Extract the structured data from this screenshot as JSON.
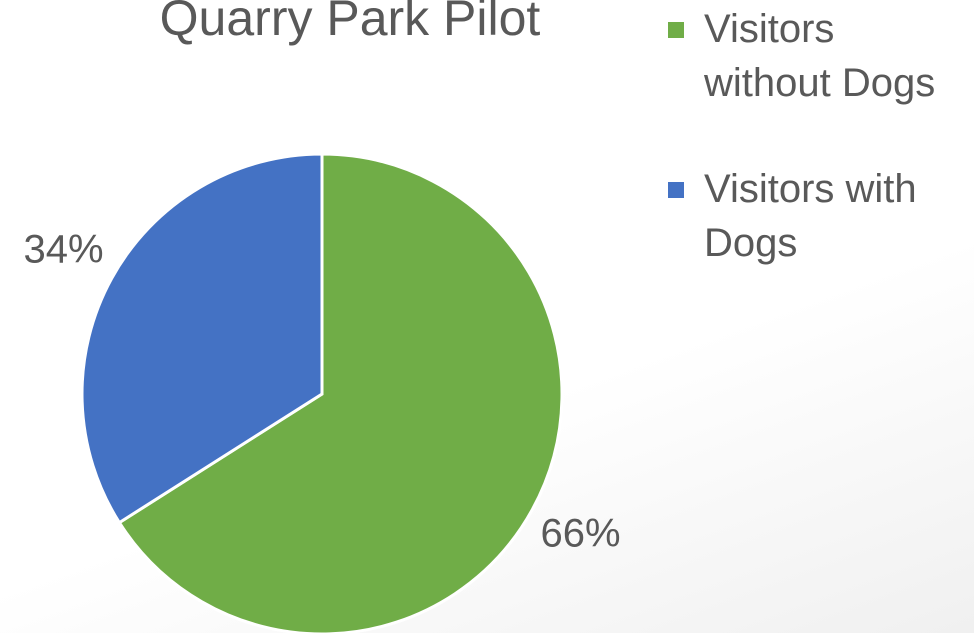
{
  "chart_data": {
    "type": "pie",
    "title": "Quarry Park Pilot",
    "categories": [
      "Visitors without Dogs",
      "Visitors with Dogs"
    ],
    "values": [
      66,
      34
    ],
    "value_labels": [
      "66%",
      "34%"
    ],
    "colors": [
      "#70ad47",
      "#4472c4"
    ]
  }
}
